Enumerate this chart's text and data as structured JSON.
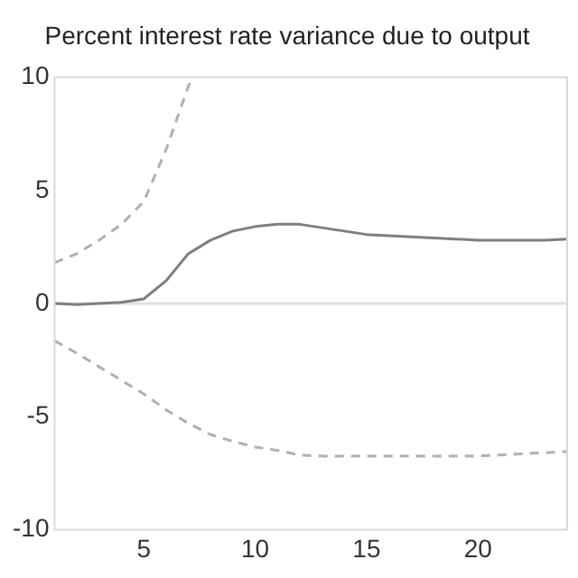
{
  "chart_data": {
    "type": "line",
    "title": "Percent interest rate variance due to output",
    "x": [
      1,
      2,
      3,
      4,
      5,
      6,
      7,
      8,
      9,
      10,
      11,
      12,
      13,
      14,
      15,
      16,
      17,
      18,
      19,
      20,
      21,
      22,
      23,
      24
    ],
    "series": [
      {
        "color": "#7f7f7f",
        "line_style": "solid",
        "values": [
          0,
          -0.05,
          0,
          0.05,
          0.2,
          1,
          2.2,
          2.8,
          3.2,
          3.4,
          3.5,
          3.5,
          3.35,
          3.2,
          3.05,
          3,
          2.95,
          2.9,
          2.85,
          2.8,
          2.8,
          2.8,
          2.8,
          2.85
        ]
      },
      {
        "color": "#b0b0b0",
        "line_style": "dashed",
        "x": [
          1,
          2,
          3,
          4,
          5,
          6,
          7,
          7.2
        ],
        "values": [
          1.8,
          2.2,
          2.8,
          3.5,
          4.5,
          6.8,
          9.6,
          10
        ]
      },
      {
        "color": "#b0b0b0",
        "line_style": "dashed",
        "values": [
          -1.65,
          -2.2,
          -2.8,
          -3.4,
          -4,
          -4.7,
          -5.3,
          -5.8,
          -6.1,
          -6.35,
          -6.5,
          -6.7,
          -6.75,
          -6.75,
          -6.75,
          -6.75,
          -6.75,
          -6.75,
          -6.75,
          -6.75,
          -6.7,
          -6.65,
          -6.6,
          -6.55
        ]
      }
    ],
    "xlim": [
      1,
      24
    ],
    "xticks": [
      5,
      10,
      15,
      20
    ],
    "ylim": [
      -10,
      10
    ],
    "yticks": [
      -10,
      -5,
      0,
      5,
      10
    ],
    "ref_lines": [
      {
        "axis": "y",
        "value": 0,
        "color": "#e0e0e0"
      }
    ],
    "grid": false,
    "legend": false,
    "marker": "none"
  }
}
